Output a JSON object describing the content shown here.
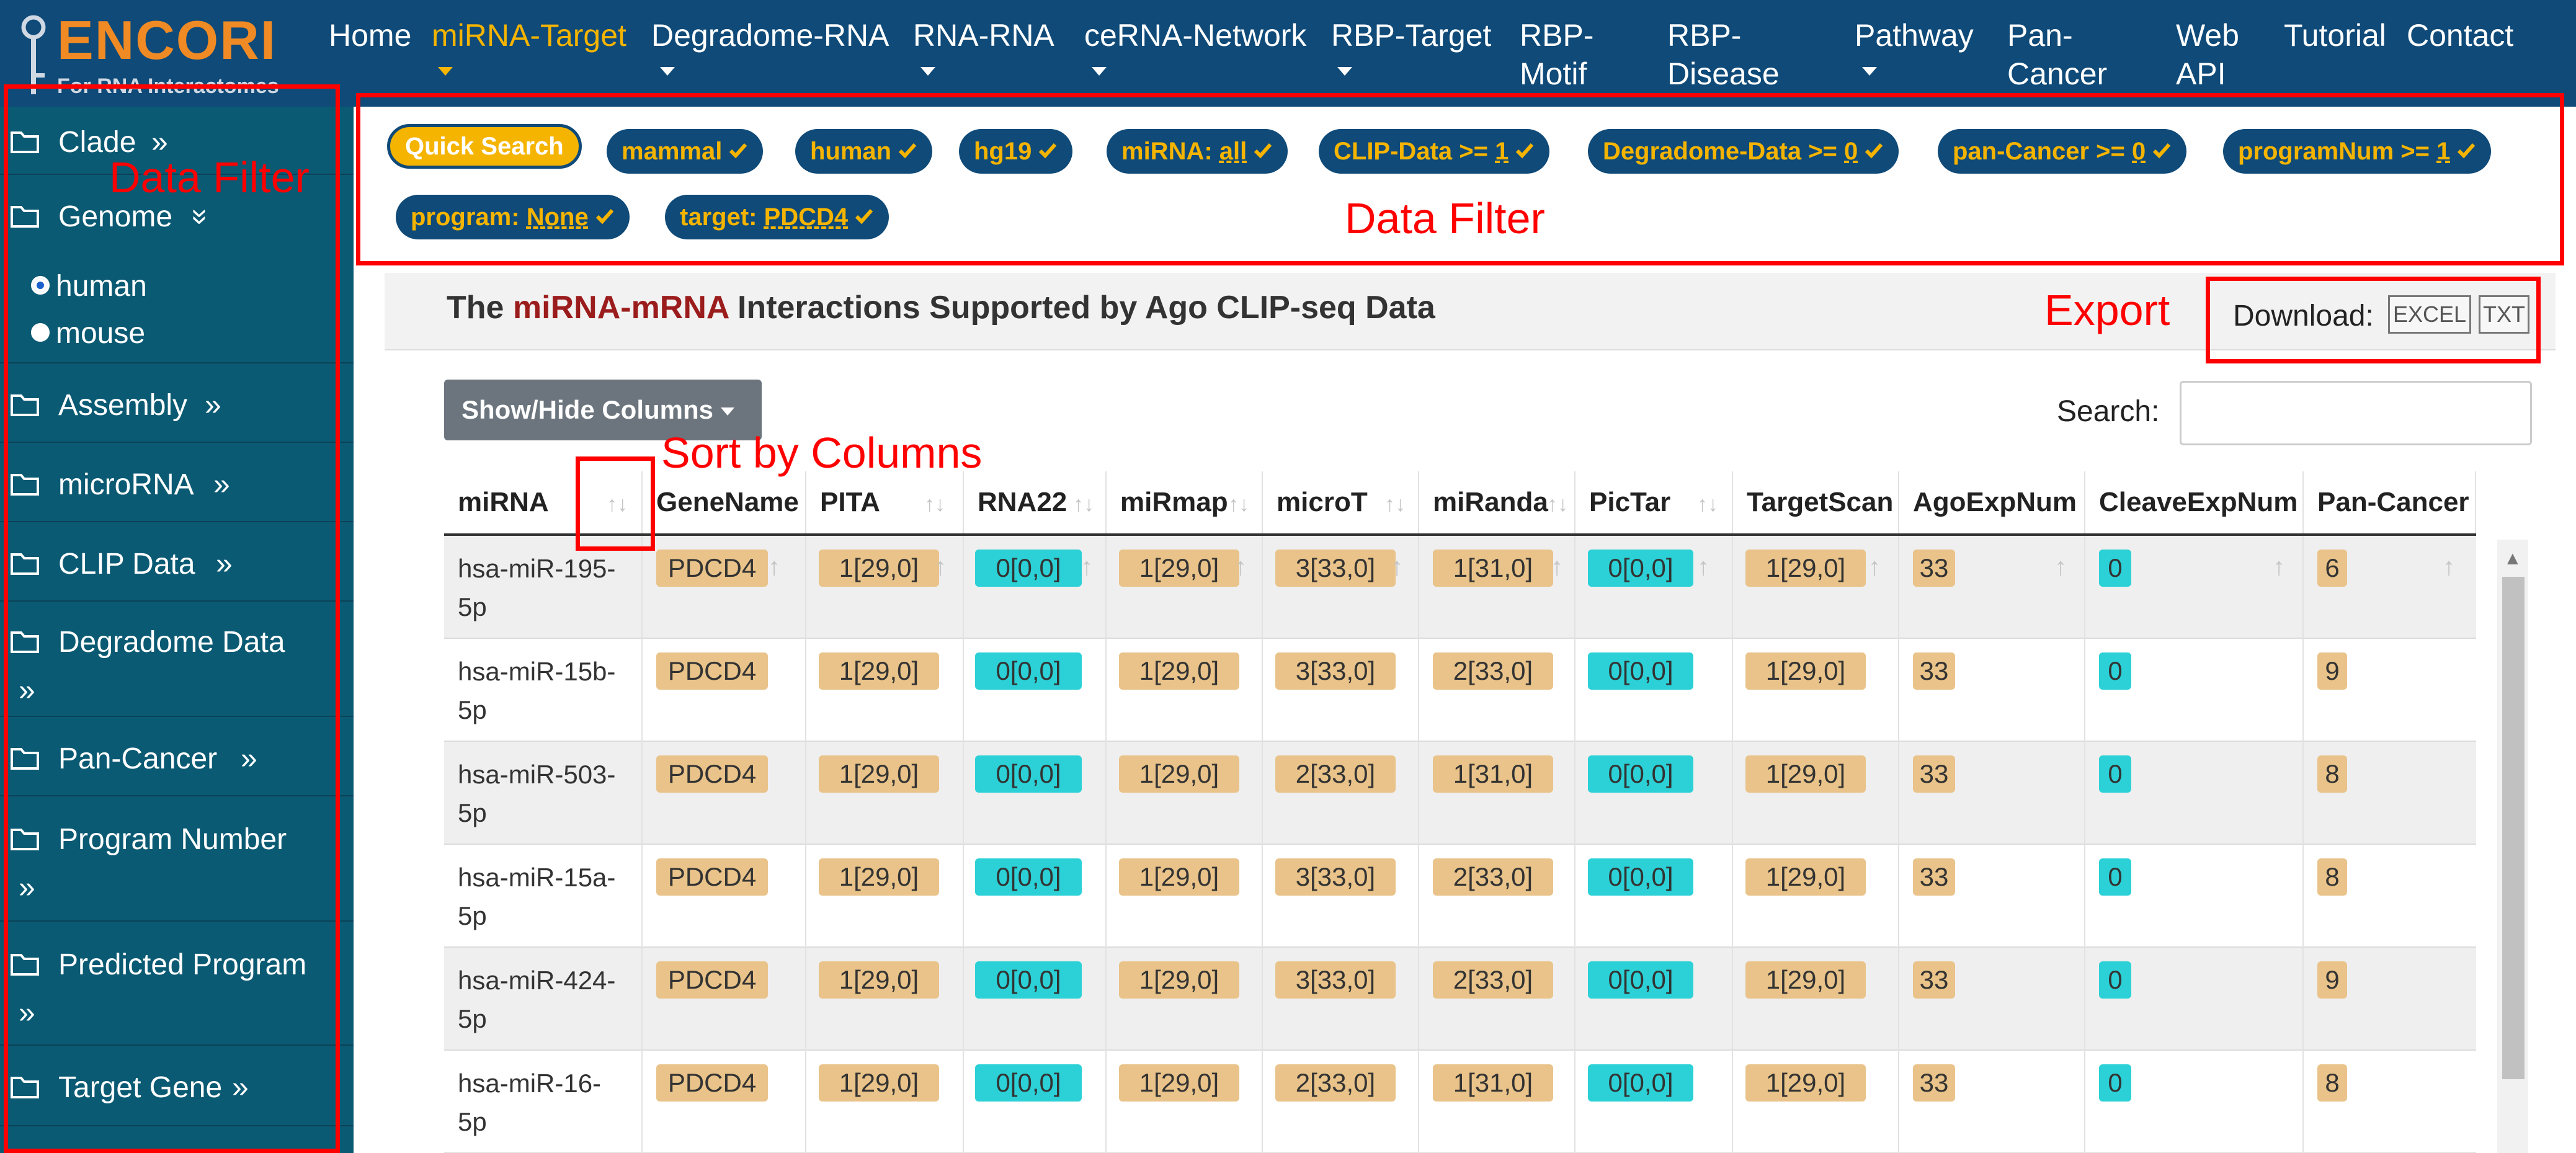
{
  "app": {
    "logo_text": "ENCORI",
    "logo_sub": "For RNA Interactomes"
  },
  "nav": {
    "items": [
      {
        "label": "Home"
      },
      {
        "label": "miRNA-Target"
      },
      {
        "label": "Degradome-RNA"
      },
      {
        "label": "RNA-RNA"
      },
      {
        "label": "ceRNA-Network"
      },
      {
        "label": "RBP-Target"
      },
      {
        "label": "RBP-\nMotif"
      },
      {
        "label": "RBP-\nDisease"
      },
      {
        "label": "Pathway"
      },
      {
        "label": "Pan-\nCancer"
      },
      {
        "label": "Web\nAPI"
      },
      {
        "label": "Tutorial"
      },
      {
        "label": "Contact"
      }
    ],
    "active_color": "#f5b400"
  },
  "sidebar": {
    "items": [
      {
        "label": "Clade"
      },
      {
        "label": "Genome"
      },
      {
        "label": "Assembly"
      },
      {
        "label": "microRNA"
      },
      {
        "label": "CLIP Data"
      },
      {
        "label": "Degradome Data"
      },
      {
        "label": "Pan-Cancer"
      },
      {
        "label": "Program Number"
      },
      {
        "label": "Predicted Program"
      },
      {
        "label": "Target Gene"
      }
    ],
    "expand_glyph": "»",
    "collapse_glyph": "«",
    "genome_options": [
      {
        "label": "human",
        "selected": true
      },
      {
        "label": "mouse",
        "selected": false
      }
    ]
  },
  "filters": {
    "quick_search": "Quick Search",
    "chips": [
      {
        "label": "mammal",
        "value": ""
      },
      {
        "label": "human",
        "value": ""
      },
      {
        "label": "hg19",
        "value": ""
      },
      {
        "label": "miRNA: ",
        "value": "all"
      },
      {
        "label": "CLIP-Data >= ",
        "value": "1"
      },
      {
        "label": "Degradome-Data >= ",
        "value": "0"
      },
      {
        "label": "pan-Cancer >= ",
        "value": "0"
      },
      {
        "label": "programNum >= ",
        "value": "1"
      },
      {
        "label": "program: ",
        "value": "None"
      },
      {
        "label": "target: ",
        "value": "PDCD4"
      }
    ]
  },
  "annotations": {
    "sidebar_filter": "Data Filter",
    "top_filter": "Data Filter",
    "export": "Export",
    "sort": "Sort by Columns"
  },
  "panel": {
    "title_pre": "The ",
    "title_highlight": "miRNA-mRNA",
    "title_post": " Interactions Supported by Ago CLIP-seq Data",
    "download_label": "Download:",
    "excel_label": "EXCEL",
    "txt_label": "TXT",
    "show_hide_label": "Show/Hide Columns",
    "search_label": "Search:",
    "search_value": ""
  },
  "table": {
    "columns": [
      "miRNA",
      "GeneName",
      "PITA",
      "RNA22",
      "miRmap",
      "microT",
      "miRanda",
      "PicTar",
      "TargetScan",
      "AgoExpNum",
      "CleaveExpNum",
      "Pan-Cancer"
    ],
    "rows": [
      {
        "mirna": "hsa-miR-195-\n5p",
        "gene": "PDCD4",
        "pita": "1[29,0]",
        "rna22": "0[0,0]",
        "mirmap": "1[29,0]",
        "microt": "3[33,0]",
        "miranda": "1[31,0]",
        "pictar": "0[0,0]",
        "targetscan": "1[29,0]",
        "ago": "33",
        "cleave": "0",
        "pancancer": "6"
      },
      {
        "mirna": "hsa-miR-15b-\n5p",
        "gene": "PDCD4",
        "pita": "1[29,0]",
        "rna22": "0[0,0]",
        "mirmap": "1[29,0]",
        "microt": "3[33,0]",
        "miranda": "2[33,0]",
        "pictar": "0[0,0]",
        "targetscan": "1[29,0]",
        "ago": "33",
        "cleave": "0",
        "pancancer": "9"
      },
      {
        "mirna": "hsa-miR-503-\n5p",
        "gene": "PDCD4",
        "pita": "1[29,0]",
        "rna22": "0[0,0]",
        "mirmap": "1[29,0]",
        "microt": "2[33,0]",
        "miranda": "1[31,0]",
        "pictar": "0[0,0]",
        "targetscan": "1[29,0]",
        "ago": "33",
        "cleave": "0",
        "pancancer": "8"
      },
      {
        "mirna": "hsa-miR-15a-\n5p",
        "gene": "PDCD4",
        "pita": "1[29,0]",
        "rna22": "0[0,0]",
        "mirmap": "1[29,0]",
        "microt": "3[33,0]",
        "miranda": "2[33,0]",
        "pictar": "0[0,0]",
        "targetscan": "1[29,0]",
        "ago": "33",
        "cleave": "0",
        "pancancer": "8"
      },
      {
        "mirna": "hsa-miR-424-\n5p",
        "gene": "PDCD4",
        "pita": "1[29,0]",
        "rna22": "0[0,0]",
        "mirmap": "1[29,0]",
        "microt": "3[33,0]",
        "miranda": "2[33,0]",
        "pictar": "0[0,0]",
        "targetscan": "1[29,0]",
        "ago": "33",
        "cleave": "0",
        "pancancer": "9"
      },
      {
        "mirna": "hsa-miR-16-\n5p",
        "gene": "PDCD4",
        "pita": "1[29,0]",
        "rna22": "0[0,0]",
        "mirmap": "1[29,0]",
        "microt": "2[33,0]",
        "miranda": "1[31,0]",
        "pictar": "0[0,0]",
        "targetscan": "1[29,0]",
        "ago": "33",
        "cleave": "0",
        "pancancer": "8"
      }
    ]
  },
  "colors": {
    "navbar": "#0f4a78",
    "sidebar": "#0b5a73",
    "logo_orange": "#f08a24",
    "chip_text": "#f5b400",
    "badge_tan": "#e9c389",
    "badge_cyan": "#2bd1d6",
    "annotation_red": "#ff0000",
    "title_highlight": "#9b1c1c"
  }
}
